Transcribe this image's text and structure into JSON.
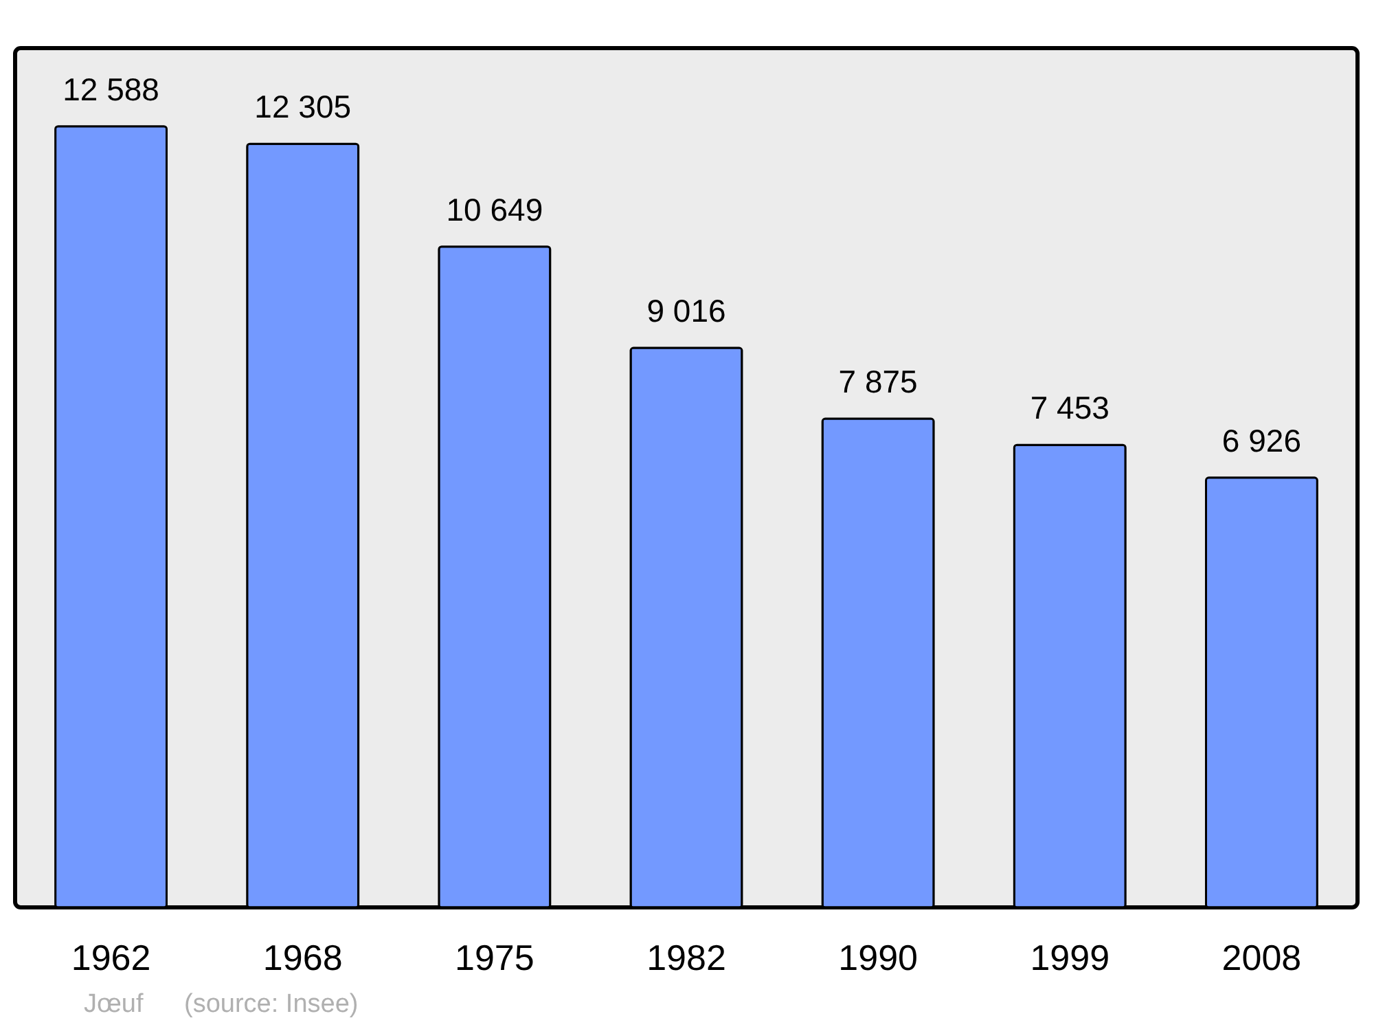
{
  "chart_data": {
    "type": "bar",
    "categories": [
      "1962",
      "1968",
      "1975",
      "1982",
      "1990",
      "1999",
      "2008"
    ],
    "values": [
      12588,
      12305,
      10649,
      9016,
      7875,
      7453,
      6926
    ],
    "value_labels": [
      "12 588",
      "12 305",
      "10 649",
      "9 016",
      "7 875",
      "7 453",
      "6 926"
    ],
    "color": "#7399ff",
    "grid": false,
    "annotations": [
      "Jœuf",
      "(source: Insee)"
    ]
  }
}
